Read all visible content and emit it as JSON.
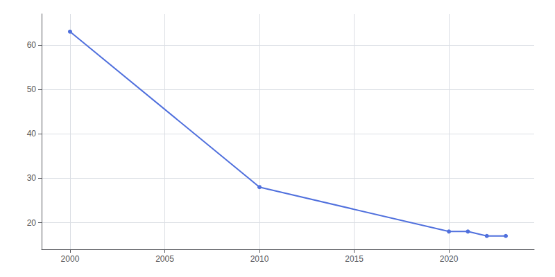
{
  "chart_data": {
    "type": "line",
    "x": [
      2000,
      2010,
      2020,
      2021,
      2022,
      2023
    ],
    "values": [
      63,
      28,
      18,
      18,
      17,
      17
    ],
    "xlim": [
      1998.5,
      2024.5
    ],
    "ylim": [
      14,
      67
    ],
    "xticks": [
      2000,
      2005,
      2010,
      2015,
      2020
    ],
    "yticks": [
      20,
      30,
      40,
      50,
      60
    ],
    "grid": true,
    "marker": "circle"
  }
}
